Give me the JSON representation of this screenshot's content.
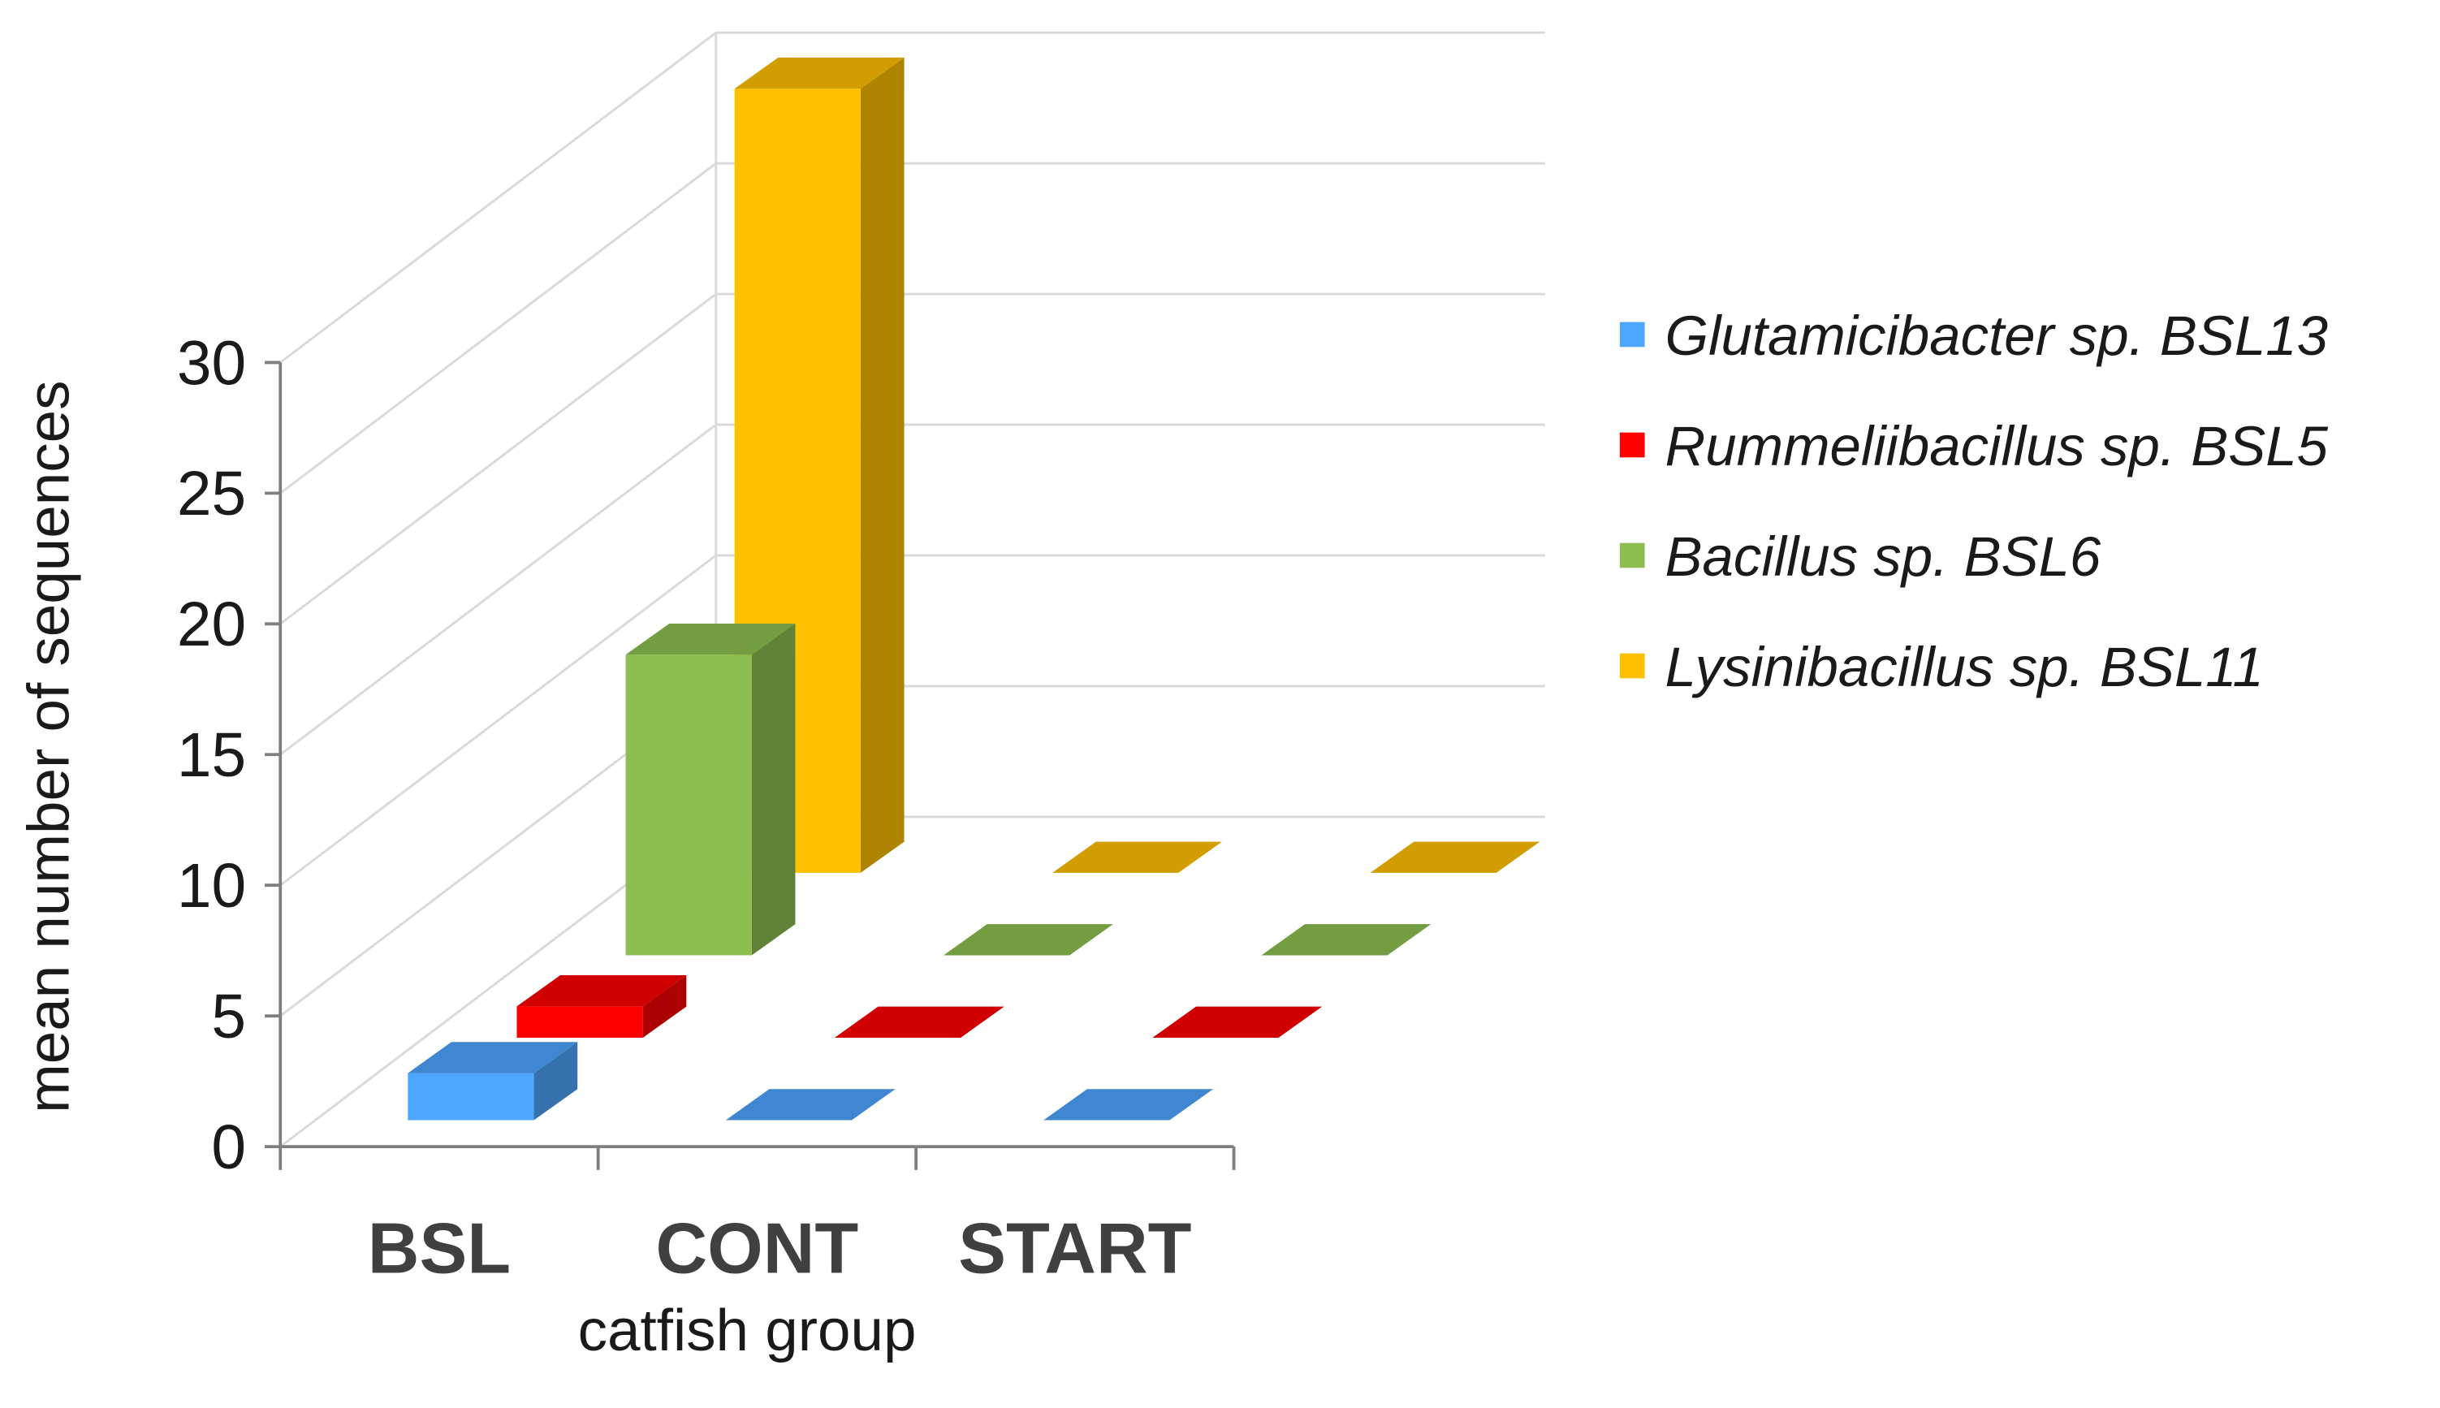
{
  "chart_data": {
    "type": "bar",
    "categories": [
      "BSL",
      "CONT",
      "START"
    ],
    "series": [
      {
        "name": "Glutamicibacter sp. BSL13",
        "color": "#4da6ff",
        "values": [
          1.8,
          0,
          0
        ]
      },
      {
        "name": "Rummeliibacillus sp. BSL5",
        "color": "#ff0000",
        "values": [
          1.2,
          0,
          0
        ]
      },
      {
        "name": "Bacillus sp. BSL6",
        "color": "#8cbf4f",
        "values": [
          11.5,
          0,
          0
        ]
      },
      {
        "name": "Lysinibacillus sp. BSL11",
        "color": "#ffc000",
        "values": [
          30,
          0,
          0
        ]
      }
    ],
    "ylim": [
      0,
      30
    ],
    "yticks": [
      0,
      5,
      10,
      15,
      20,
      25,
      30
    ],
    "x_label": "catfish group",
    "y_label": "mean number of sequences",
    "grid": true,
    "legend": "right"
  }
}
